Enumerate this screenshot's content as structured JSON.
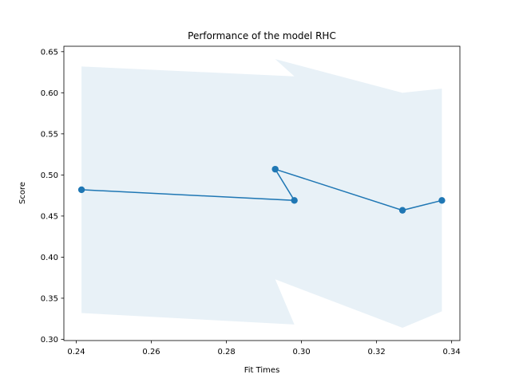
{
  "chart_data": {
    "type": "line",
    "title": "Performance of the model RHC",
    "xlabel": "Fit Times",
    "ylabel": "Score",
    "xlim": [
      0.2367,
      0.3422
    ],
    "ylim": [
      0.2985,
      0.6566
    ],
    "xticks": [
      "0.24",
      "0.26",
      "0.28",
      "0.30",
      "0.32",
      "0.34"
    ],
    "xtick_values": [
      0.24,
      0.26,
      0.28,
      0.3,
      0.32,
      0.34
    ],
    "yticks": [
      "0.30",
      "0.35",
      "0.40",
      "0.45",
      "0.50",
      "0.55",
      "0.60",
      "0.65"
    ],
    "ytick_values": [
      0.3,
      0.35,
      0.4,
      0.45,
      0.5,
      0.55,
      0.6,
      0.65
    ],
    "grid": false,
    "series": [
      {
        "x": [
          0.2414,
          0.2981,
          0.293,
          0.3269,
          0.3374
        ],
        "y": [
          0.482,
          0.469,
          0.507,
          0.457,
          0.469
        ],
        "band_upper": [
          0.632,
          0.62,
          0.641,
          0.6,
          0.605
        ],
        "band_lower": [
          0.332,
          0.318,
          0.373,
          0.314,
          0.334
        ]
      }
    ],
    "colors": {
      "line": "#1f77b4",
      "band": "#1f77b4"
    }
  }
}
